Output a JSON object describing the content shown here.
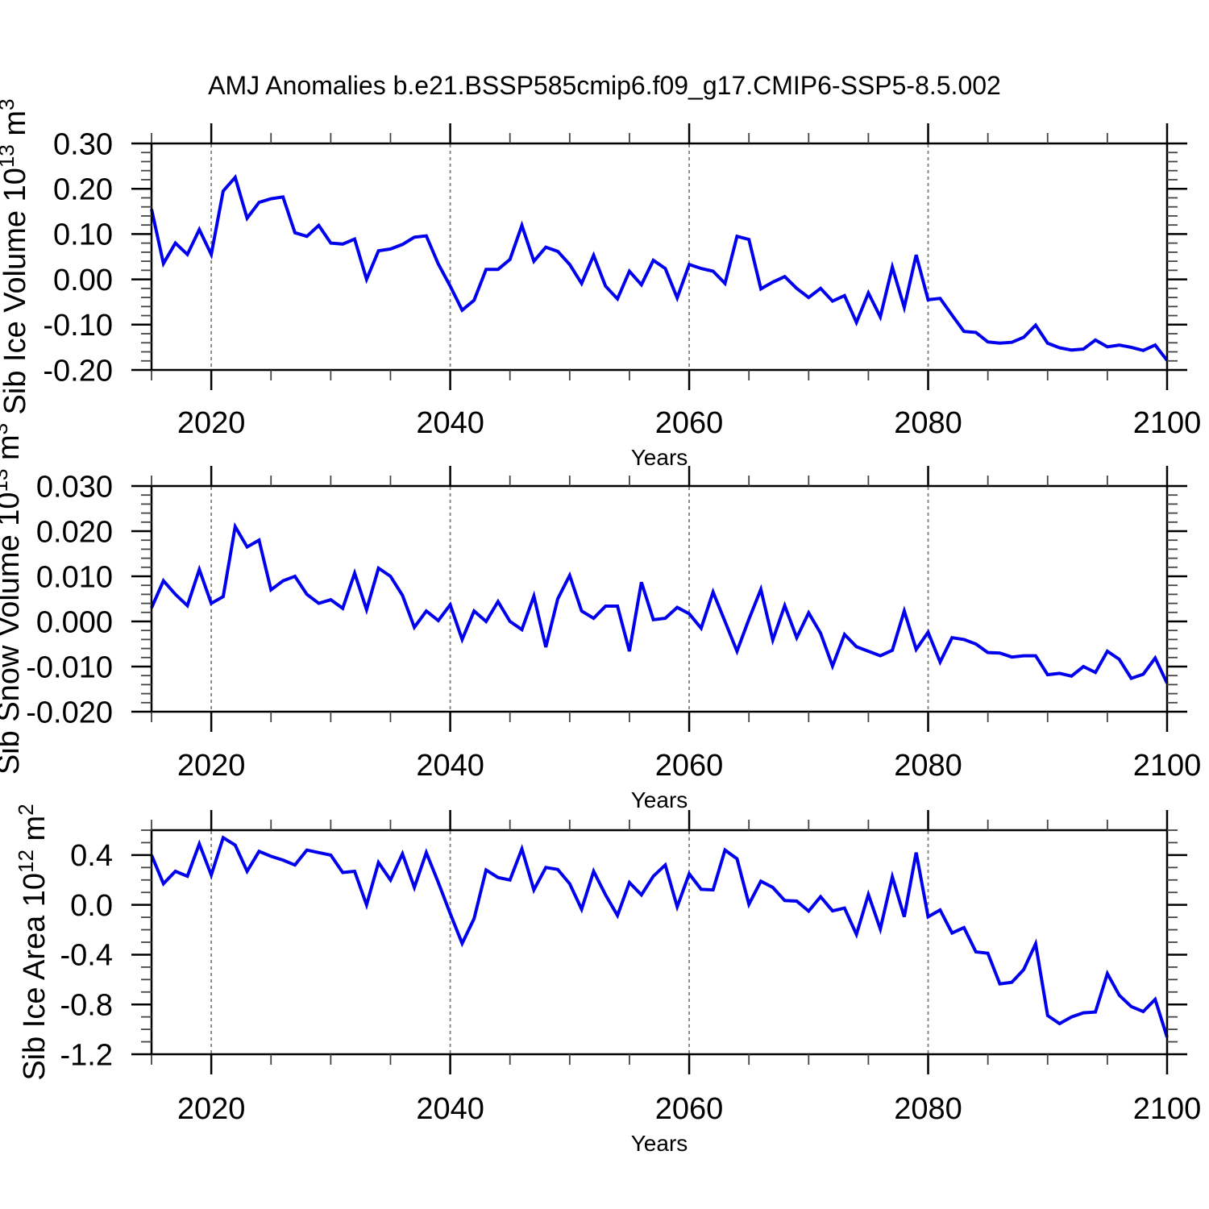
{
  "title": "AMJ Anomalies b.e21.BSSP585cmip6.f09_g17.CMIP6-SSP5-8.5.002",
  "colors": {
    "line": "#0000ee",
    "grid": "#808080",
    "frame": "#000000",
    "minor_tick": "#444444",
    "text": "#000000",
    "background": "#ffffff"
  },
  "chart_data": [
    {
      "type": "line",
      "name": "sib-ice-volume",
      "ylabel": "Sib Ice Volume 10^13 m^3",
      "ylabel_rich": [
        {
          "t": "Sib Ice Volume 10"
        },
        {
          "t": "13",
          "sup": true
        },
        {
          "t": " m"
        },
        {
          "t": "3",
          "sup": true
        }
      ],
      "xlabel": "Years",
      "x_start": 2015,
      "x_end": 2100,
      "x_step": 1,
      "xlim": [
        2015,
        2100
      ],
      "ylim": [
        -0.2,
        0.3
      ],
      "xticks": [
        2020,
        2040,
        2060,
        2080,
        2100
      ],
      "xtick_labels": [
        "2020",
        "2040",
        "2060",
        "2080",
        "2100"
      ],
      "x_minor_step": 5,
      "yticks": [
        0.3,
        0.2,
        0.1,
        0.0,
        -0.1,
        -0.2
      ],
      "ytick_labels": [
        "0.30",
        "0.20",
        "0.10",
        "0.00",
        "-0.10",
        "-0.20"
      ],
      "y_minor_step": 0.02,
      "grid_x": [
        2020,
        2040,
        2060,
        2080
      ],
      "grid_style": "dashed",
      "values": [
        0.155,
        0.035,
        0.08,
        0.055,
        0.11,
        0.055,
        0.195,
        0.225,
        0.135,
        0.17,
        0.178,
        0.182,
        0.103,
        0.095,
        0.119,
        0.08,
        0.078,
        0.089,
        0.0,
        0.063,
        0.067,
        0.077,
        0.093,
        0.096,
        0.034,
        -0.015,
        -0.068,
        -0.046,
        0.022,
        0.022,
        0.044,
        0.119,
        0.04,
        0.071,
        0.062,
        0.033,
        -0.009,
        0.053,
        -0.015,
        -0.043,
        0.018,
        -0.012,
        0.042,
        0.024,
        -0.041,
        0.033,
        0.024,
        0.018,
        -0.009,
        0.095,
        0.088,
        -0.021,
        -0.006,
        0.006,
        -0.02,
        -0.04,
        -0.02,
        -0.048,
        -0.036,
        -0.095,
        -0.03,
        -0.083,
        0.027,
        -0.062,
        0.054,
        -0.045,
        -0.042,
        -0.079,
        -0.115,
        -0.117,
        -0.138,
        -0.141,
        -0.139,
        -0.128,
        -0.101,
        -0.141,
        -0.151,
        -0.156,
        -0.154,
        -0.134,
        -0.149,
        -0.145,
        -0.15,
        -0.157,
        -0.145,
        -0.179
      ]
    },
    {
      "type": "line",
      "name": "sib-snow-volume",
      "ylabel": "Sib Snow Volume 10^13 m^3",
      "ylabel_rich": [
        {
          "t": "Sib Snow Volume 10"
        },
        {
          "t": "13",
          "sup": true
        },
        {
          "t": " m"
        },
        {
          "t": "3",
          "sup": true
        }
      ],
      "xlabel": "Years",
      "x_start": 2015,
      "x_end": 2100,
      "x_step": 1,
      "xlim": [
        2015,
        2100
      ],
      "ylim": [
        -0.02,
        0.03
      ],
      "xticks": [
        2020,
        2040,
        2060,
        2080,
        2100
      ],
      "xtick_labels": [
        "2020",
        "2040",
        "2060",
        "2080",
        "2100"
      ],
      "x_minor_step": 5,
      "yticks": [
        0.03,
        0.02,
        0.01,
        0.0,
        -0.01,
        -0.02
      ],
      "ytick_labels": [
        "0.030",
        "0.020",
        "0.010",
        "0.000",
        "-0.010",
        "-0.020"
      ],
      "y_minor_step": 0.002,
      "grid_x": [
        2020,
        2040,
        2060,
        2080
      ],
      "grid_style": "dashed",
      "values": [
        0.003,
        0.009,
        0.006,
        0.0035,
        0.0115,
        0.004,
        0.0055,
        0.021,
        0.0165,
        0.018,
        0.007,
        0.009,
        0.01,
        0.006,
        0.004,
        0.0048,
        0.0029,
        0.0107,
        0.0026,
        0.0118,
        0.01,
        0.0058,
        -0.0013,
        0.0023,
        0.0002,
        0.0037,
        -0.004,
        0.0023,
        0.0,
        0.0044,
        0.0,
        -0.0018,
        0.0056,
        -0.0057,
        0.005,
        0.0102,
        0.0023,
        0.0007,
        0.0034,
        0.0034,
        -0.0066,
        0.0087,
        0.0004,
        0.0007,
        0.0031,
        0.0017,
        -0.0015,
        0.0065,
        0.0,
        -0.0066,
        0.0005,
        0.0071,
        -0.0041,
        0.0035,
        -0.0036,
        0.0019,
        -0.0026,
        -0.0099,
        -0.0029,
        -0.0056,
        -0.0066,
        -0.0076,
        -0.0064,
        0.0023,
        -0.0062,
        -0.0024,
        -0.009,
        -0.0036,
        -0.004,
        -0.005,
        -0.0069,
        -0.007,
        -0.0079,
        -0.0076,
        -0.0076,
        -0.0118,
        -0.0115,
        -0.0121,
        -0.01,
        -0.0113,
        -0.0066,
        -0.0084,
        -0.0126,
        -0.0117,
        -0.0081,
        -0.0137
      ]
    },
    {
      "type": "line",
      "name": "sib-ice-area",
      "ylabel": "Sib Ice Area 10^12 m^2",
      "ylabel_rich": [
        {
          "t": "Sib Ice Area 10"
        },
        {
          "t": "12",
          "sup": true
        },
        {
          "t": " m"
        },
        {
          "t": "2",
          "sup": true
        }
      ],
      "xlabel": "Years",
      "x_start": 2015,
      "x_end": 2100,
      "x_step": 1,
      "xlim": [
        2015,
        2100
      ],
      "ylim": [
        -1.2,
        0.6
      ],
      "xticks": [
        2020,
        2040,
        2060,
        2080,
        2100
      ],
      "xtick_labels": [
        "2020",
        "2040",
        "2060",
        "2080",
        "2100"
      ],
      "x_minor_step": 5,
      "yticks": [
        0.4,
        0.0,
        -0.4,
        -0.8,
        -1.2
      ],
      "ytick_labels": [
        "0.4",
        "0.0",
        "-0.4",
        "-0.8",
        "-1.2"
      ],
      "y_minor_step": 0.1,
      "grid_x": [
        2020,
        2040,
        2060,
        2080
      ],
      "grid_style": "dashed",
      "values": [
        0.4,
        0.17,
        0.27,
        0.23,
        0.49,
        0.24,
        0.54,
        0.48,
        0.27,
        0.43,
        0.39,
        0.36,
        0.32,
        0.44,
        0.42,
        0.4,
        0.26,
        0.27,
        0.0,
        0.34,
        0.2,
        0.41,
        0.14,
        0.42,
        0.18,
        -0.07,
        -0.31,
        -0.11,
        0.28,
        0.22,
        0.2,
        0.45,
        0.12,
        0.3,
        0.285,
        0.17,
        -0.035,
        0.27,
        0.08,
        -0.085,
        0.18,
        0.08,
        0.23,
        0.32,
        -0.015,
        0.25,
        0.125,
        0.12,
        0.44,
        0.37,
        0.005,
        0.19,
        0.14,
        0.035,
        0.03,
        -0.05,
        0.065,
        -0.048,
        -0.026,
        -0.237,
        0.083,
        -0.194,
        0.226,
        -0.096,
        0.42,
        -0.096,
        -0.041,
        -0.226,
        -0.183,
        -0.378,
        -0.389,
        -0.635,
        -0.622,
        -0.52,
        -0.313,
        -0.889,
        -0.954,
        -0.9,
        -0.867,
        -0.861,
        -0.552,
        -0.726,
        -0.817,
        -0.857,
        -0.759,
        -1.063
      ]
    }
  ]
}
